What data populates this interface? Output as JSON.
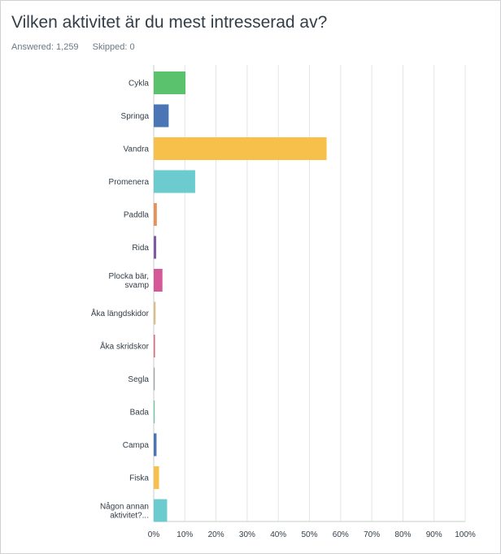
{
  "question": {
    "title": "Vilken aktivitet är du mest intresserad av?",
    "answered": "Answered: 1,259",
    "skipped": "Skipped: 0"
  },
  "chart_data": {
    "type": "bar",
    "orientation": "horizontal",
    "categories": [
      [
        "Cykla"
      ],
      [
        "Springa"
      ],
      [
        "Vandra"
      ],
      [
        "Promenera"
      ],
      [
        "Paddla"
      ],
      [
        "Rida"
      ],
      [
        "Plocka bär,",
        "svamp"
      ],
      [
        "Åka längdskidor"
      ],
      [
        "Åka skridskor"
      ],
      [
        "Segla"
      ],
      [
        "Bada"
      ],
      [
        "Campa"
      ],
      [
        "Fiska"
      ],
      [
        "Någon annan",
        "aktivitet?..."
      ]
    ],
    "values": [
      10.2,
      4.8,
      55.5,
      13.3,
      1.0,
      0.8,
      2.8,
      0.6,
      0.4,
      0.15,
      0.1,
      0.9,
      1.7,
      4.3
    ],
    "colors": [
      "#5ac16c",
      "#4a76b5",
      "#f6c04a",
      "#6ccbcf",
      "#e8915a",
      "#7d5ba3",
      "#d55898",
      "#d7c08d",
      "#e06677",
      "#9aa0a6",
      "#6cc69c",
      "#4a76b5",
      "#f6c04a",
      "#6ccbcf"
    ],
    "x_ticks": [
      "0%",
      "10%",
      "20%",
      "30%",
      "40%",
      "50%",
      "60%",
      "70%",
      "80%",
      "90%",
      "100%"
    ],
    "xlim": [
      0,
      100
    ],
    "grid": true
  }
}
